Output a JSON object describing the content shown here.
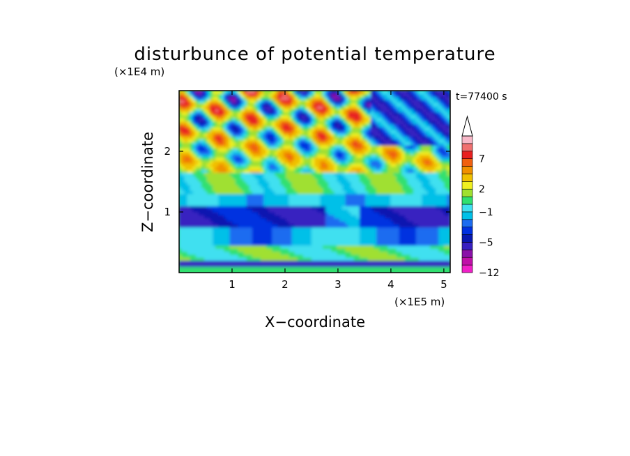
{
  "chart_data": {
    "type": "heatmap",
    "title": "disturbunce of potential temperature",
    "time_label": "t=77400 s",
    "xlabel": "X−coordinate",
    "ylabel": "Z−coordinate",
    "x_unit": "(×1E5 m)",
    "y_unit": "(×1E4 m)",
    "xlim": [
      0,
      5.12
    ],
    "ylim": [
      0,
      3.0
    ],
    "x_ticks": [
      1,
      2,
      3,
      4,
      5
    ],
    "x_tick_labels": [
      "1",
      "2",
      "3",
      "4",
      "5"
    ],
    "y_ticks": [
      1,
      2
    ],
    "y_tick_labels": [
      "1",
      "2"
    ],
    "colorbar": {
      "levels": [
        -12,
        -10,
        -8,
        -6,
        -5,
        -4,
        -3,
        -2,
        -1,
        0,
        1,
        2,
        3,
        5,
        6,
        7,
        9,
        11
      ],
      "colors": [
        "#f020c8",
        "#c010a8",
        "#8a10a8",
        "#3820c0",
        "#0818b0",
        "#0030e0",
        "#1c6cf0",
        "#00c0e8",
        "#40e0f0",
        "#30e070",
        "#a0e030",
        "#f0f020",
        "#f0c000",
        "#f09000",
        "#f06010",
        "#e82020",
        "#f07070",
        "#f8b8c8"
      ],
      "tick_values": [
        7,
        2,
        -1,
        -5,
        -12
      ],
      "tick_labels": [
        "7",
        "2",
        "−1",
        "−5",
        "−12"
      ]
    },
    "grid": false
  }
}
